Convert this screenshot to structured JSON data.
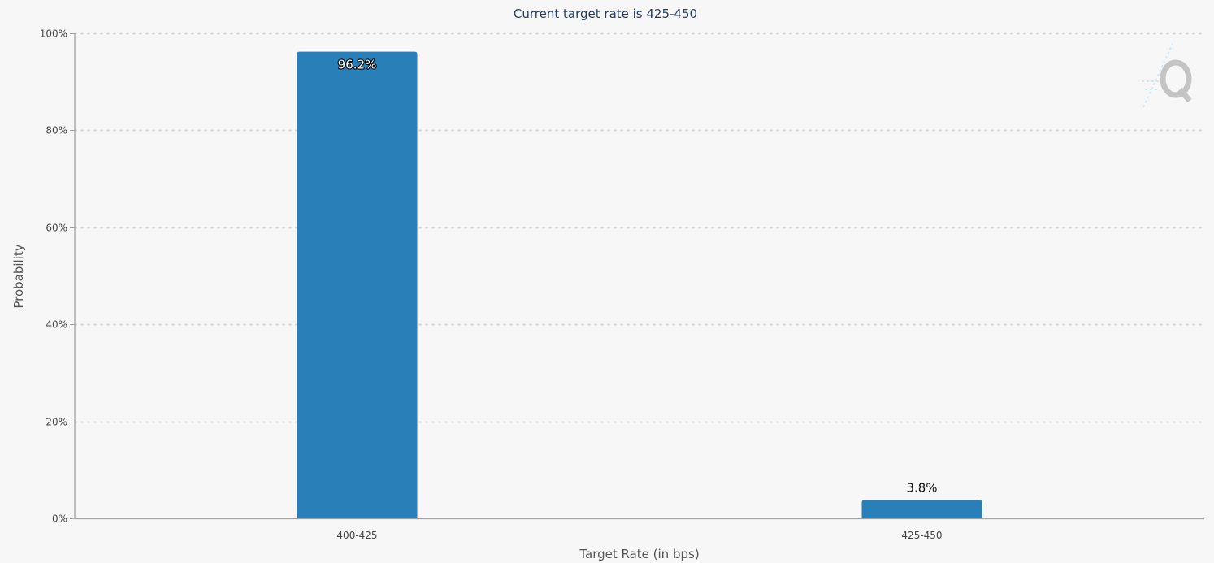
{
  "chart_data": {
    "type": "bar",
    "title": "Current target rate is 425-450",
    "xlabel": "Target Rate (in bps)",
    "ylabel": "Probability",
    "categories": [
      "400-425",
      "425-450"
    ],
    "values": [
      96.2,
      3.8
    ],
    "data_labels": [
      "96.2%",
      "3.8%"
    ],
    "ylim": [
      0,
      100
    ],
    "y_ticks": [
      0,
      20,
      40,
      60,
      80,
      100
    ],
    "y_tick_labels": [
      "0%",
      "20%",
      "40%",
      "60%",
      "80%",
      "100%"
    ],
    "grid": true,
    "legend": "none",
    "bar_color": "#2980b9"
  },
  "watermark": {
    "icon": "q-logo-icon"
  }
}
